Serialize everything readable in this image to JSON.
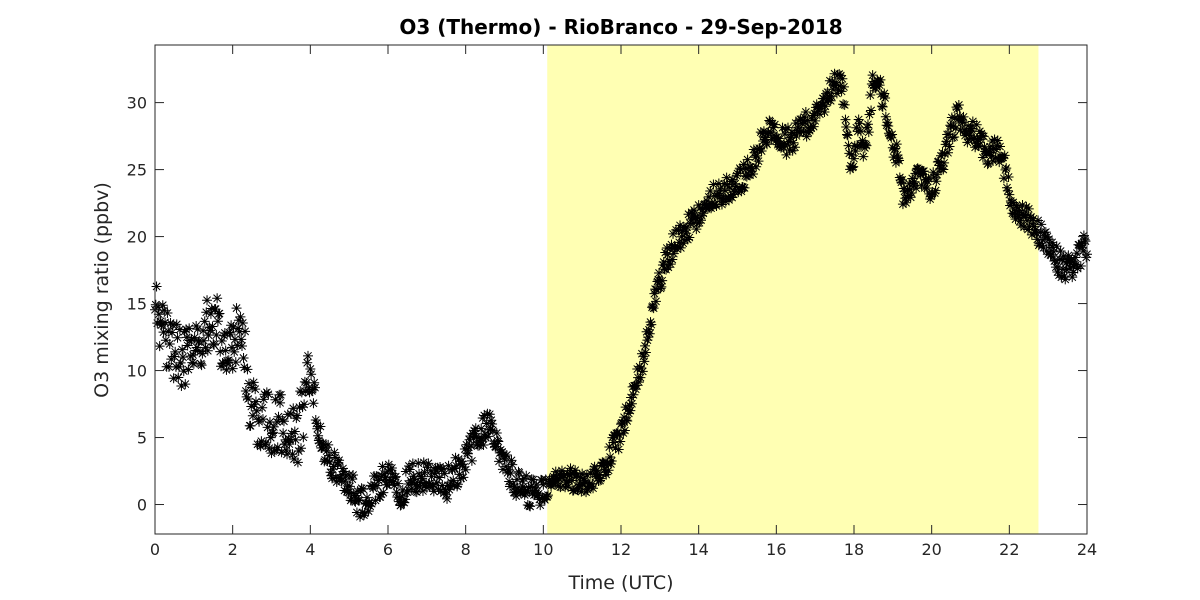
{
  "chart_data": {
    "type": "scatter",
    "title": "O3 (Thermo) - RioBranco - 29-Sep-2018",
    "xlabel": "Time (UTC)",
    "ylabel": "O3 mixing ratio (ppbv)",
    "xlim": [
      0,
      24
    ],
    "ylim": [
      -2.2,
      34.3
    ],
    "xticks": [
      0,
      2,
      4,
      6,
      8,
      10,
      12,
      14,
      16,
      18,
      20,
      22,
      24
    ],
    "yticks": [
      0,
      5,
      10,
      15,
      20,
      25,
      30
    ],
    "grid": false,
    "marker": "asterisk",
    "marker_color": "#000000",
    "daylight_span": {
      "x_start": 10.1,
      "x_end": 22.75,
      "color": "#ffffb3"
    },
    "trend": {
      "x": [
        0,
        0.3,
        0.6,
        1.0,
        1.4,
        1.8,
        2.2,
        2.5,
        3.0,
        3.4,
        3.7,
        4.0,
        4.3,
        4.7,
        5.0,
        5.3,
        5.6,
        6.0,
        6.3,
        6.6,
        7.0,
        7.5,
        7.9,
        8.3,
        8.6,
        8.9,
        9.3,
        9.7,
        10.1,
        10.5,
        10.9,
        11.3,
        11.7,
        12.0,
        12.3,
        12.6,
        12.9,
        13.2,
        13.5,
        13.8,
        14.1,
        14.4,
        14.7,
        15.0,
        15.3,
        15.6,
        15.9,
        16.2,
        16.5,
        16.8,
        17.1,
        17.4,
        17.7,
        17.9,
        18.1,
        18.3,
        18.5,
        18.7,
        18.9,
        19.1,
        19.3,
        19.5,
        19.7,
        19.9,
        20.1,
        20.3,
        20.5,
        20.7,
        20.9,
        21.1,
        21.3,
        21.5,
        21.7,
        21.9,
        22.1,
        22.4,
        22.7,
        23.0,
        23.3,
        23.6,
        24.0
      ],
      "y": [
        15,
        12,
        11,
        11,
        14,
        12,
        13,
        7,
        6,
        6,
        5.5,
        10,
        4,
        2.5,
        1.5,
        0,
        1,
        2.5,
        0.5,
        2,
        2,
        1.5,
        3,
        5,
        6,
        4,
        1.5,
        1,
        1,
        2,
        1.5,
        2,
        3.5,
        5.5,
        8,
        11,
        15.5,
        18.5,
        20,
        21,
        22,
        23,
        23.5,
        24,
        25,
        27,
        28,
        27,
        27.5,
        28.5,
        29.5,
        31,
        31.5,
        25,
        28,
        26,
        32,
        31,
        28,
        26,
        22.5,
        24,
        24.5,
        23.5,
        24,
        26,
        28,
        29,
        28,
        27.5,
        27,
        26,
        26.5,
        25,
        22,
        21.5,
        20.5,
        19.5,
        18,
        17.5,
        19.5
      ]
    }
  }
}
